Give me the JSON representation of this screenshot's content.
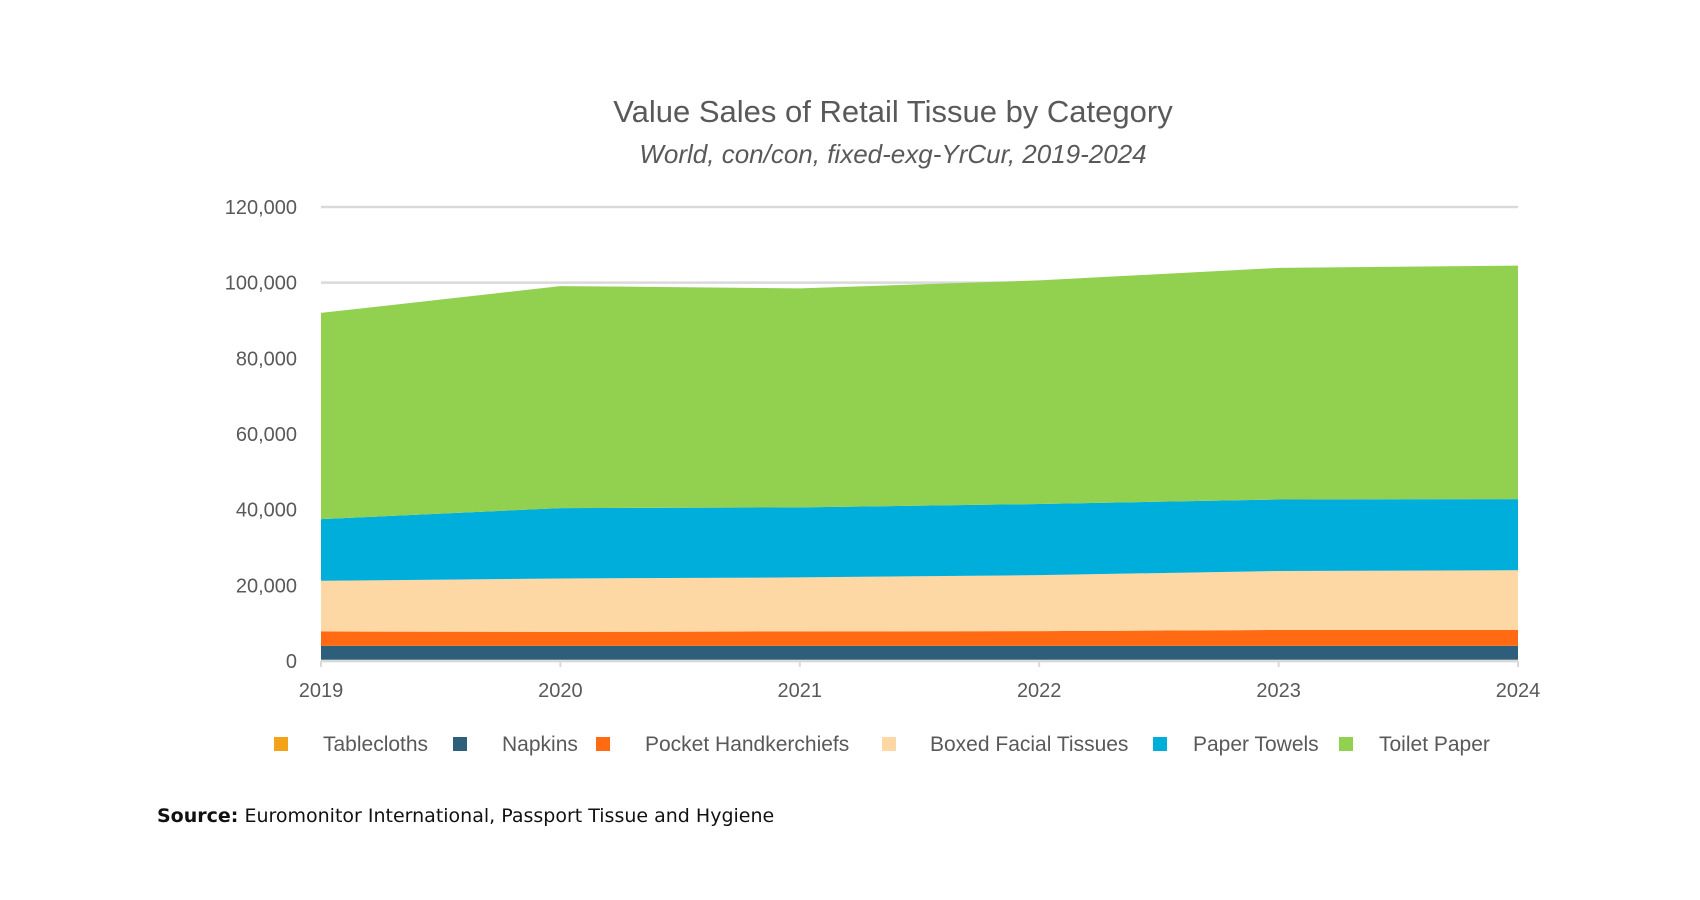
{
  "chart_data": {
    "type": "area",
    "stacked": true,
    "title": "Value Sales of Retail Tissue by Category",
    "subtitle": "World, con/con, fixed-exg-YrCur, 2019-2024",
    "x": [
      "2019",
      "2020",
      "2021",
      "2022",
      "2023",
      "2024"
    ],
    "ylim": [
      0,
      120000
    ],
    "yticks": [
      "0",
      "20,000",
      "40,000",
      "60,000",
      "80,000",
      "100,000",
      "120,000"
    ],
    "grid": true,
    "legend_position": "bottom",
    "series": [
      {
        "name": "Tablecloths",
        "color": "#F5A21B",
        "values": [
          300,
          300,
          300,
          300,
          300,
          300
        ]
      },
      {
        "name": "Napkins",
        "color": "#2E5F7A",
        "values": [
          3700,
          3700,
          3700,
          3700,
          3700,
          3700
        ]
      },
      {
        "name": "Pocket Handkerchiefs",
        "color": "#FF6A13",
        "values": [
          3800,
          3700,
          3800,
          3900,
          4200,
          4200
        ]
      },
      {
        "name": "Boxed Facial Tissues",
        "color": "#FDD8A5",
        "values": [
          13400,
          14100,
          14300,
          14800,
          15600,
          15800
        ]
      },
      {
        "name": "Paper Towels",
        "color": "#00AEDB",
        "values": [
          16300,
          18600,
          18500,
          18800,
          18900,
          18800
        ]
      },
      {
        "name": "Toilet Paper",
        "color": "#92D050",
        "values": [
          54500,
          58700,
          57900,
          59100,
          61200,
          61700
        ]
      }
    ]
  },
  "source": {
    "label": "Source:",
    "text": "Euromonitor International, Passport Tissue and Hygiene"
  }
}
